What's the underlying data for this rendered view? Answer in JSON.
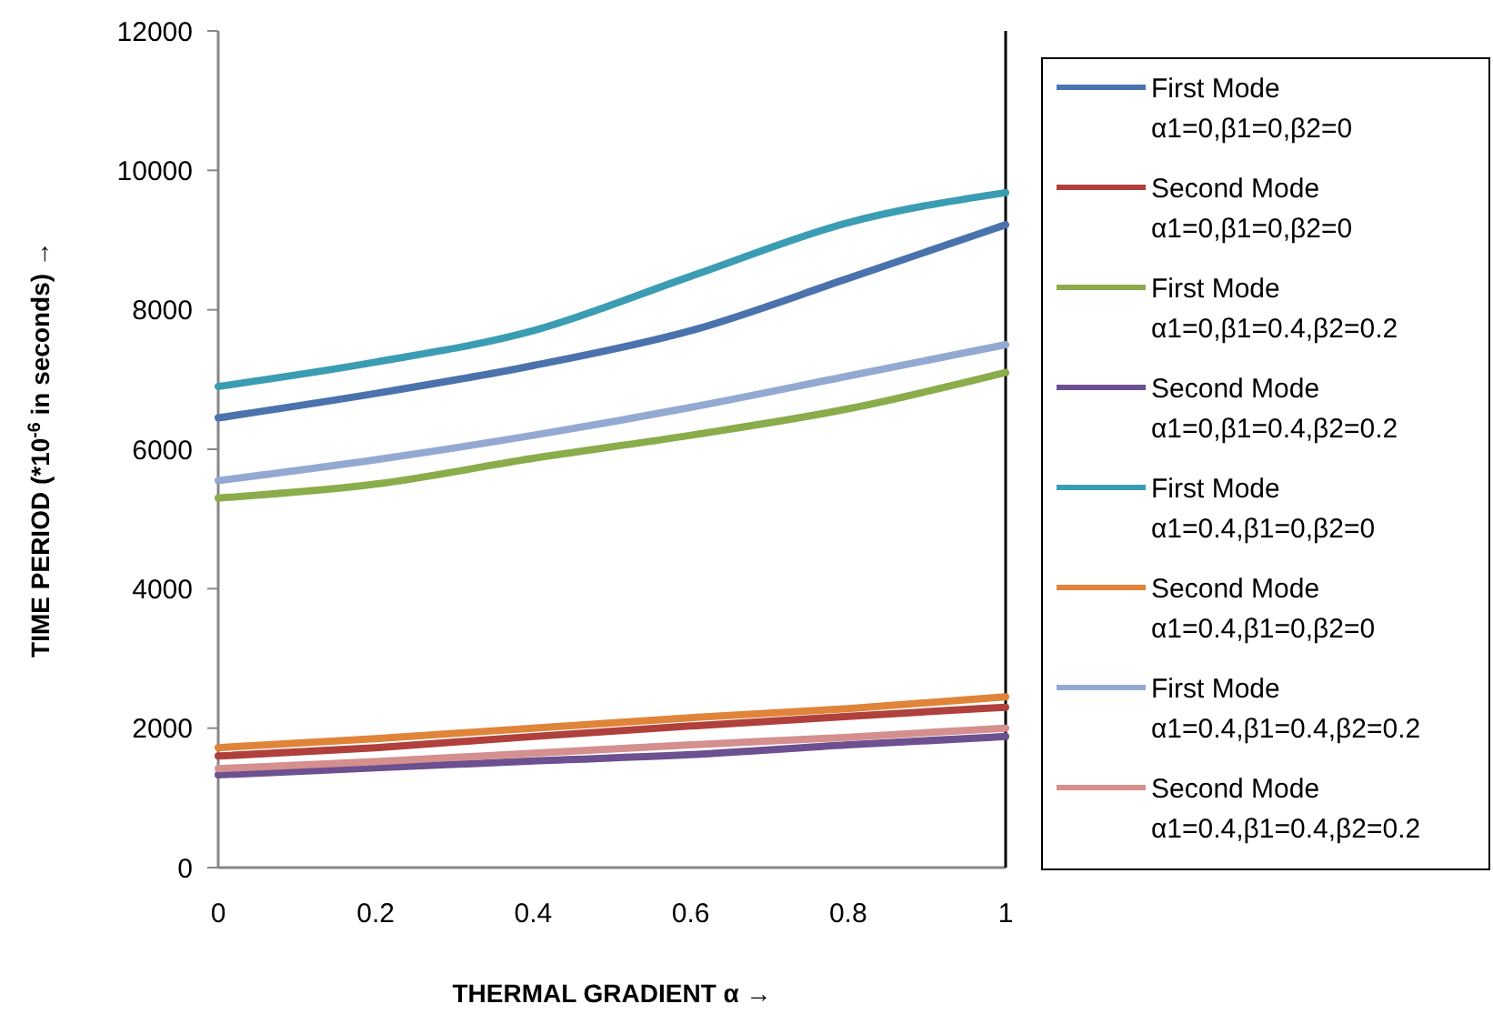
{
  "chart_data": {
    "type": "line",
    "xlabel": "THERMAL GRADIENT α →",
    "ylabel": "TIME PERIOD  (*10$^{-6}$ in seconds) →",
    "x": [
      0,
      0.2,
      0.4,
      0.6,
      0.8,
      1
    ],
    "xlim": [
      0,
      1
    ],
    "xticks": [
      0,
      0.2,
      0.4,
      0.6,
      0.8,
      1
    ],
    "ylim": [
      0,
      12000
    ],
    "yticks": [
      0,
      2000,
      4000,
      6000,
      8000,
      10000,
      12000
    ],
    "legend": "right",
    "marker": "none",
    "line_style": "solid",
    "series": [
      {
        "name": "First Mode\nα1=0,β1=0,β2=0",
        "color": "#4a72ad",
        "values": [
          6450,
          6800,
          7200,
          7700,
          8450,
          9220
        ]
      },
      {
        "name": "Second Mode\nα1=0,β1=0,β2=0",
        "color": "#b0403c",
        "values": [
          1600,
          1720,
          1880,
          2030,
          2170,
          2300
        ]
      },
      {
        "name": "First Mode\nα1=0,β1=0.4,β2=0.2",
        "color": "#8aac4a",
        "values": [
          5300,
          5500,
          5870,
          6200,
          6580,
          7100
        ]
      },
      {
        "name": "Second Mode\nα1=0,β1=0.4,β2=0.2",
        "color": "#6c5090",
        "values": [
          1330,
          1430,
          1530,
          1620,
          1760,
          1880
        ]
      },
      {
        "name": "First Mode\nα1=0.4,β1=0,β2=0",
        "color": "#3b9db3",
        "values": [
          6900,
          7250,
          7700,
          8480,
          9250,
          9680
        ]
      },
      {
        "name": "Second Mode\nα1=0.4,β1=0,β2=0",
        "color": "#e0843a",
        "values": [
          1720,
          1850,
          2000,
          2150,
          2280,
          2450
        ]
      },
      {
        "name": "First Mode\nα1=0.4,β1=0.4,β2=0.2",
        "color": "#93a9d2",
        "values": [
          5550,
          5850,
          6200,
          6600,
          7050,
          7500
        ]
      },
      {
        "name": "Second Mode\nα1=0.4,β1=0.4,β2=0.2",
        "color": "#d48f8e",
        "values": [
          1420,
          1520,
          1640,
          1760,
          1870,
          2000
        ]
      }
    ]
  }
}
